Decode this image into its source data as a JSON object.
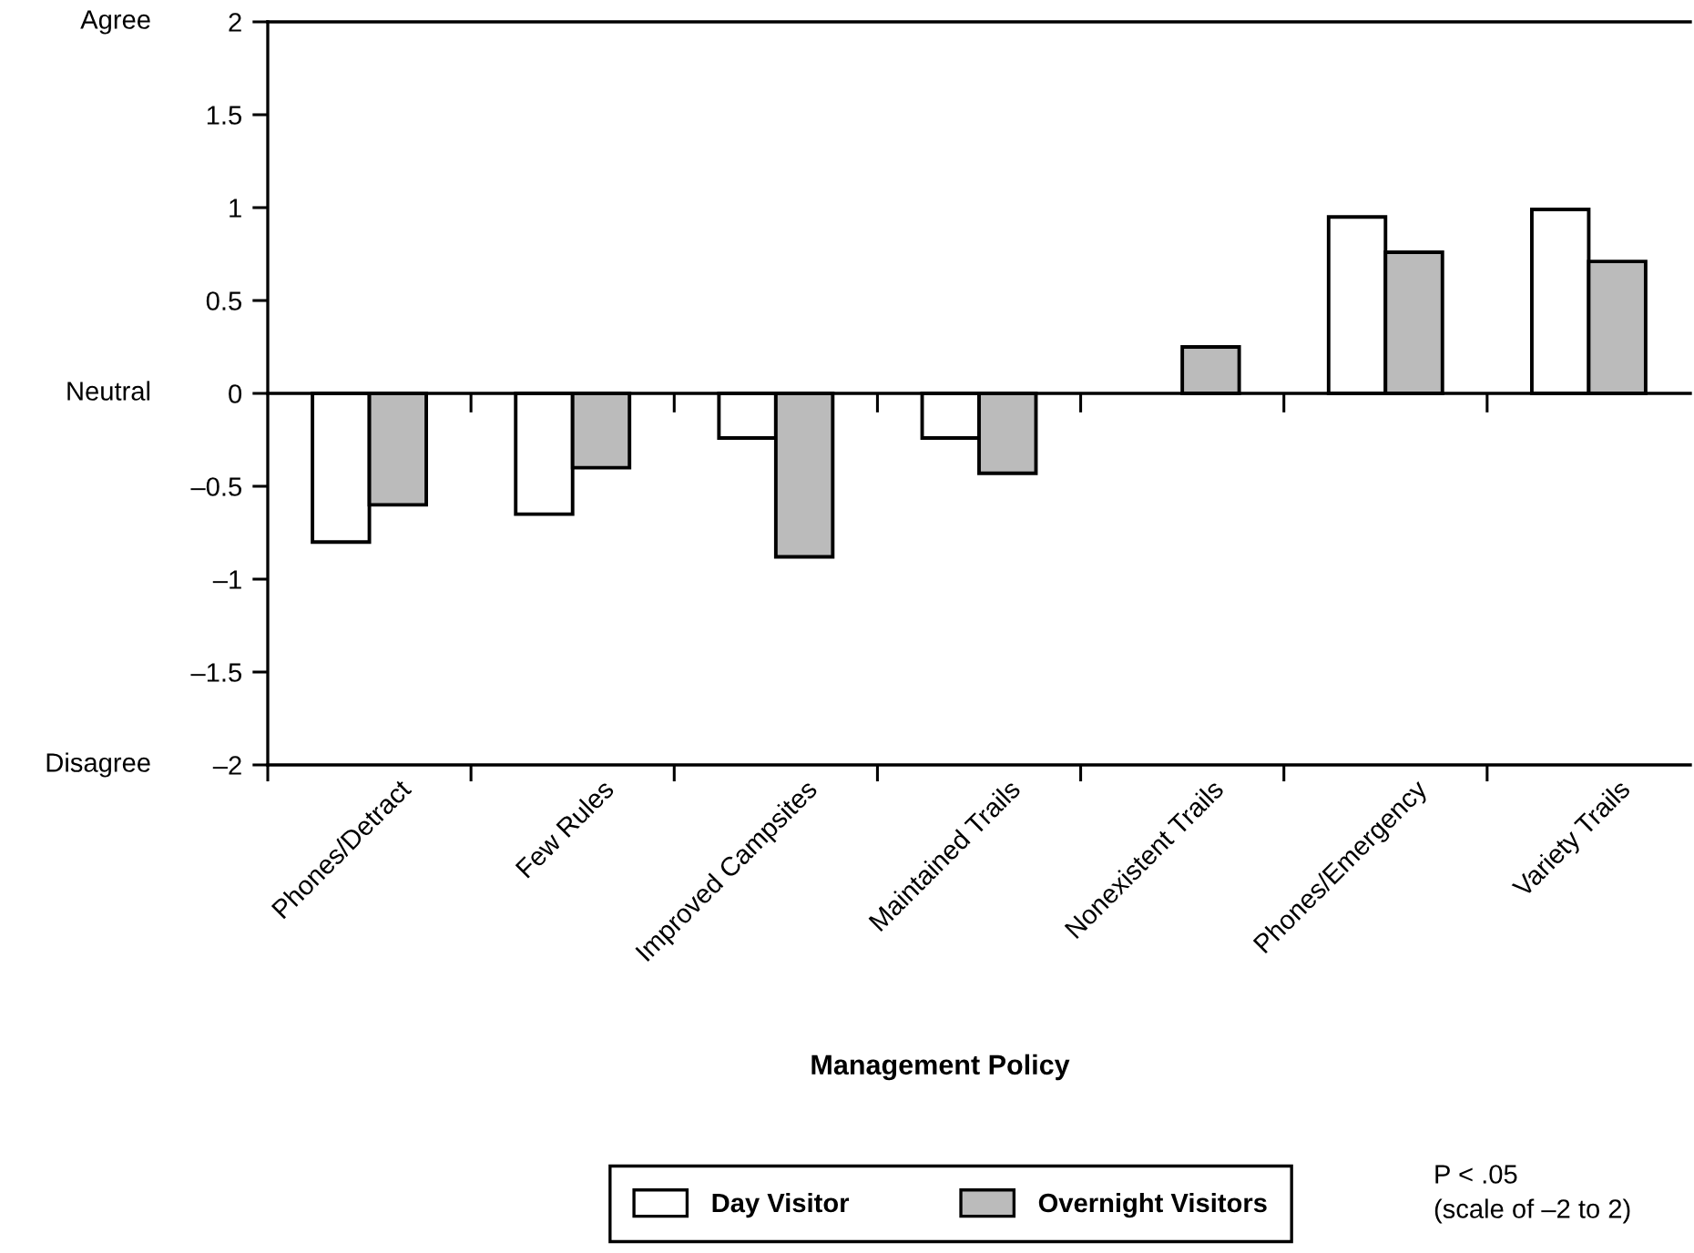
{
  "chart_data": {
    "type": "bar",
    "xlabel": "Management Policy",
    "categories": [
      "Phones/Detract",
      "Few Rules",
      "Improved Campsites",
      "Maintained Trails",
      "Nonexistent Trails",
      "Phones/Emergency",
      "Variety Trails"
    ],
    "series": [
      {
        "name": "Day Visitor",
        "color": "#ffffff",
        "values": [
          -0.8,
          -0.65,
          -0.24,
          -0.24,
          null,
          0.95,
          0.99
        ]
      },
      {
        "name": "Overnight Visitors",
        "color": "#bbbbbb",
        "values": [
          -0.6,
          -0.4,
          -0.88,
          -0.43,
          0.25,
          0.76,
          0.71
        ]
      }
    ],
    "ylim": [
      -2,
      2
    ],
    "yticks": [
      2,
      1.5,
      1,
      0.5,
      0,
      {
        "value": -0.5,
        "label": "–0.5"
      },
      {
        "value": -1,
        "label": "–1"
      },
      {
        "value": -1.5,
        "label": "–1.5"
      },
      {
        "value": -2,
        "label": "–2"
      }
    ],
    "legend": "bottom",
    "annotations": [
      "Agree",
      "Neutral",
      "Disagree",
      "P < .05",
      "(scale of –2 to 2)"
    ]
  }
}
